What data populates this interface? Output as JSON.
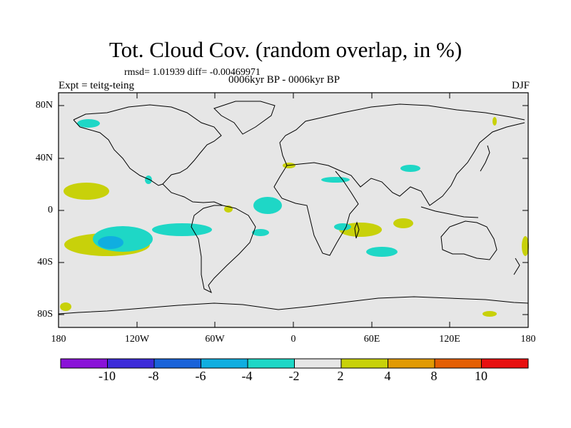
{
  "header": {
    "title": "Tot. Cloud Cov. (random overlap, in %)",
    "stats": "rmsd= 1.01939 diff= -0.00469971",
    "experiment": "Expt = teitg-teing",
    "period": "0006kyr BP - 0006kyr BP",
    "season": "DJF"
  },
  "axes": {
    "y_ticks": [
      "80N",
      "40N",
      "0",
      "40S",
      "80S"
    ],
    "x_ticks": [
      "180",
      "120W",
      "60W",
      "0",
      "60E",
      "120E",
      "180"
    ]
  },
  "colorbar": {
    "colors": [
      "#8a13d8",
      "#3d2bd9",
      "#1a63d9",
      "#10aee0",
      "#1ed7c6",
      "#e6e6e6",
      "#c8d10a",
      "#e19a04",
      "#e45f04",
      "#e81010"
    ],
    "labels": [
      "-10",
      "-8",
      "-6",
      "-4",
      "-2",
      "2",
      "4",
      "8",
      "10"
    ]
  },
  "colors": {
    "background_field": "#e6e6e6",
    "coast": "#000000",
    "negative_small": "#1ed7c6",
    "negative_mid": "#10aee0",
    "positive_small": "#c8d10a"
  }
}
